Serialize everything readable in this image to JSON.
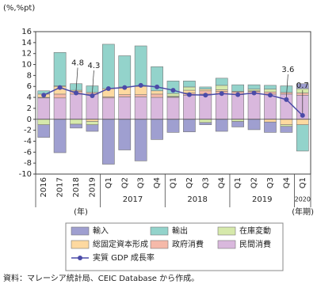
{
  "chart_data": {
    "type": "bar",
    "y_label": "(%,%pt)",
    "x_unit": "(年)",
    "x_unit_quarter": "(年期)",
    "source": "資料：マレーシア統計局、CEIC Database から作成。",
    "categories": [
      "2016",
      "2017",
      "2018",
      "2019",
      "Q1",
      "Q2",
      "Q3",
      "Q4",
      "Q1",
      "Q2",
      "Q3",
      "Q4",
      "Q1",
      "Q2",
      "Q3",
      "Q4",
      "Q1"
    ],
    "groups": [
      {
        "label": "2017",
        "span": 4
      },
      {
        "label": "2018",
        "span": 4
      },
      {
        "label": "2019",
        "span": 4
      },
      {
        "label": "2020",
        "span": 1
      }
    ],
    "ylim": [
      -10,
      16
    ],
    "yticks": [
      -10,
      -8,
      -6,
      -4,
      -2,
      0,
      2,
      4,
      6,
      8,
      10,
      12,
      14,
      16
    ],
    "series": [
      {
        "name": "民間消費",
        "color": "#d9b8dd",
        "values": [
          3.9,
          3.9,
          4.6,
          4.6,
          3.9,
          4.1,
          4.1,
          4.0,
          4.0,
          4.4,
          4.6,
          4.7,
          4.5,
          4.7,
          4.6,
          4.6,
          4.4
        ]
      },
      {
        "name": "政府消費",
        "color": "#f5b9a9",
        "values": [
          0.1,
          0.7,
          0.5,
          0.3,
          0.2,
          0.4,
          0.4,
          0.6,
          0.1,
          0.4,
          0.6,
          0.4,
          0.5,
          0.4,
          0.4,
          0.3,
          0.4
        ]
      },
      {
        "name": "総固定資本形成",
        "color": "#fdd9a0",
        "values": [
          0.6,
          1.4,
          0.2,
          -0.4,
          1.5,
          1.4,
          1.5,
          0.6,
          0.1,
          0.5,
          0.3,
          0.3,
          0.1,
          0.1,
          -0.5,
          -1.0,
          -1.0
        ]
      },
      {
        "name": "在庫変動",
        "color": "#d6e9ab",
        "values": [
          -1.0,
          0.1,
          -0.9,
          -0.6,
          0.0,
          0.0,
          0.0,
          0.0,
          0.5,
          0.6,
          -0.6,
          0.8,
          -0.4,
          0.3,
          0.5,
          -0.3,
          0.8
        ]
      },
      {
        "name": "輸出",
        "color": "#93d3cb",
        "values": [
          0.6,
          6.1,
          1.2,
          1.2,
          8.1,
          5.7,
          7.4,
          4.4,
          2.3,
          1.1,
          0.4,
          1.3,
          1.2,
          0.8,
          0.7,
          1.2,
          -4.8
        ]
      },
      {
        "name": "輸入",
        "color": "#9f9fd0",
        "values": [
          -2.3,
          -6.1,
          -0.7,
          -1.2,
          -8.2,
          -5.6,
          -7.6,
          -3.7,
          -2.4,
          -2.3,
          -0.4,
          -2.2,
          -1.0,
          -1.9,
          -1.9,
          -1.1,
          0.9
        ]
      },
      {
        "name": "実質 GDP 成長率",
        "color": "#4b4ba8",
        "kind": "line",
        "values": [
          4.4,
          5.8,
          4.8,
          4.3,
          5.6,
          5.8,
          6.2,
          5.9,
          5.3,
          4.5,
          4.4,
          4.7,
          4.5,
          4.8,
          4.4,
          3.6,
          0.7
        ],
        "value_labels": [
          null,
          null,
          "4.8",
          "4.3",
          null,
          null,
          null,
          null,
          null,
          null,
          null,
          null,
          null,
          null,
          null,
          "3.6",
          "0.7"
        ]
      }
    ]
  }
}
